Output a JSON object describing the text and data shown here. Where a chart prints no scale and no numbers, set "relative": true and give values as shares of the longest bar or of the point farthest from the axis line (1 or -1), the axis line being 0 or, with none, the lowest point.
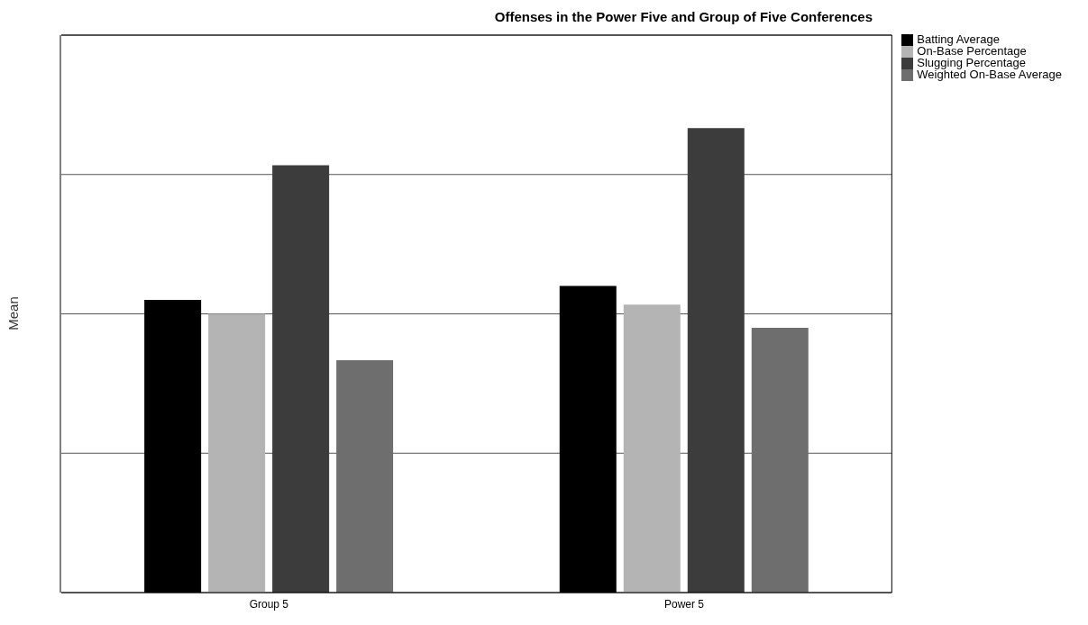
{
  "chart_data": {
    "type": "bar",
    "title": "Offenses in the Power Five and Group of Five Conferences",
    "ylabel": "Mean",
    "categories": [
      "Group 5",
      "Power 5"
    ],
    "relative": true,
    "grid": "y",
    "legend": "top right",
    "series": [
      {
        "name": "Batting Average",
        "color": "#000000",
        "values": [
          0.63,
          0.66
        ]
      },
      {
        "name": "On-Base Percentage",
        "color": "#b4b4b4",
        "values": [
          0.6,
          0.62
        ]
      },
      {
        "name": "Slugging Percentage",
        "color": "#3c3c3c",
        "values": [
          0.92,
          1
        ]
      },
      {
        "name": "Weighted On-Base Average",
        "color": "#6e6e6e",
        "values": [
          0.5,
          0.57
        ]
      }
    ]
  }
}
